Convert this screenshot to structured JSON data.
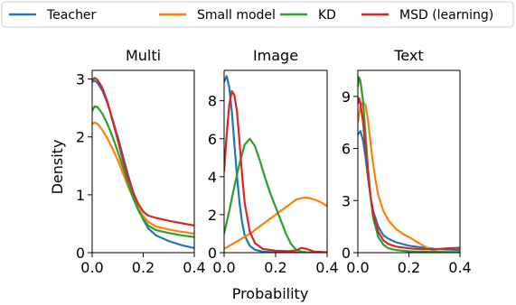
{
  "chart_data": {
    "type": "line",
    "xlabel": "Probability",
    "ylabel": "Density",
    "legend": {
      "placement": "top",
      "entries": [
        {
          "name": "Teacher",
          "color": "#1f77b4"
        },
        {
          "name": "Small model",
          "color": "#ff7f0e"
        },
        {
          "name": "KD",
          "color": "#2ca02c"
        },
        {
          "name": "MSD (learning)",
          "color": "#d62728"
        }
      ]
    },
    "panels": [
      {
        "title": "Multi",
        "xlim": [
          0,
          0.4
        ],
        "ylim": [
          0,
          3.15
        ],
        "xticks": [
          0.0,
          0.2,
          0.4
        ],
        "xtick_labels": [
          "0.0",
          "0.2",
          "0.4"
        ],
        "yticks": [
          0,
          1,
          2,
          3
        ],
        "ytick_labels": [
          "0",
          "1",
          "2",
          "3"
        ],
        "series": [
          {
            "name": "Teacher",
            "color": "#1f77b4",
            "x": [
              0,
              0.01,
              0.02,
              0.04,
              0.06,
              0.08,
              0.1,
              0.12,
              0.14,
              0.16,
              0.18,
              0.2,
              0.22,
              0.25,
              0.3,
              0.35,
              0.4
            ],
            "y": [
              2.95,
              2.97,
              2.94,
              2.8,
              2.58,
              2.3,
              2.0,
              1.68,
              1.35,
              1.05,
              0.78,
              0.57,
              0.42,
              0.3,
              0.2,
              0.13,
              0.08
            ]
          },
          {
            "name": "Small model",
            "color": "#ff7f0e",
            "x": [
              0,
              0.01,
              0.02,
              0.04,
              0.06,
              0.08,
              0.1,
              0.12,
              0.14,
              0.16,
              0.18,
              0.2,
              0.22,
              0.25,
              0.3,
              0.35,
              0.4
            ],
            "y": [
              2.22,
              2.25,
              2.23,
              2.12,
              1.97,
              1.8,
              1.6,
              1.38,
              1.15,
              0.95,
              0.78,
              0.63,
              0.53,
              0.45,
              0.4,
              0.36,
              0.33
            ]
          },
          {
            "name": "KD",
            "color": "#2ca02c",
            "x": [
              0,
              0.01,
              0.02,
              0.04,
              0.06,
              0.08,
              0.1,
              0.12,
              0.14,
              0.16,
              0.18,
              0.2,
              0.22,
              0.25,
              0.3,
              0.35,
              0.4
            ],
            "y": [
              2.45,
              2.53,
              2.52,
              2.4,
              2.22,
              2.0,
              1.75,
              1.48,
              1.2,
              0.95,
              0.74,
              0.58,
              0.47,
              0.39,
              0.34,
              0.3,
              0.27
            ]
          },
          {
            "name": "MSD (learning)",
            "color": "#d62728",
            "x": [
              0,
              0.01,
              0.02,
              0.04,
              0.06,
              0.08,
              0.1,
              0.12,
              0.14,
              0.16,
              0.18,
              0.2,
              0.22,
              0.25,
              0.3,
              0.35,
              0.4
            ],
            "y": [
              2.98,
              3.02,
              2.99,
              2.85,
              2.6,
              2.28,
              1.95,
              1.6,
              1.3,
              1.05,
              0.85,
              0.71,
              0.64,
              0.6,
              0.55,
              0.51,
              0.47
            ]
          }
        ]
      },
      {
        "title": "Image",
        "xlim": [
          0,
          0.4
        ],
        "ylim": [
          0,
          9.6
        ],
        "xticks": [
          0.0,
          0.2,
          0.4
        ],
        "xtick_labels": [
          "0.0",
          "0.2",
          "0.4"
        ],
        "yticks": [
          0,
          2,
          4,
          6,
          8
        ],
        "ytick_labels": [
          "0",
          "2",
          "4",
          "6",
          "8"
        ],
        "series": [
          {
            "name": "Teacher",
            "color": "#1f77b4",
            "x": [
              0,
              0.01,
              0.02,
              0.03,
              0.04,
              0.05,
              0.06,
              0.07,
              0.08,
              0.1,
              0.12,
              0.15,
              0.2,
              0.3,
              0.4
            ],
            "y": [
              9.0,
              9.3,
              8.7,
              7.4,
              5.7,
              4.0,
              2.6,
              1.6,
              0.9,
              0.35,
              0.15,
              0.05,
              0.02,
              0.0,
              0.0
            ]
          },
          {
            "name": "Small model",
            "color": "#ff7f0e",
            "x": [
              0,
              0.05,
              0.1,
              0.15,
              0.2,
              0.25,
              0.28,
              0.31,
              0.33,
              0.36,
              0.38,
              0.4
            ],
            "y": [
              0.2,
              0.6,
              1.0,
              1.5,
              2.0,
              2.5,
              2.8,
              2.9,
              2.88,
              2.75,
              2.62,
              2.45
            ]
          },
          {
            "name": "KD",
            "color": "#2ca02c",
            "x": [
              0,
              0.02,
              0.04,
              0.06,
              0.08,
              0.1,
              0.12,
              0.14,
              0.16,
              0.18,
              0.2,
              0.22,
              0.24,
              0.26,
              0.28,
              0.3,
              0.32,
              0.35,
              0.4
            ],
            "y": [
              1.0,
              2.2,
              3.5,
              4.7,
              5.7,
              6.0,
              5.6,
              4.8,
              3.9,
              3.1,
              2.4,
              1.7,
              1.0,
              0.45,
              0.15,
              0.05,
              0.02,
              0.0,
              0.0
            ]
          },
          {
            "name": "MSD (learning)",
            "color": "#d62728",
            "x": [
              0,
              0.01,
              0.02,
              0.03,
              0.04,
              0.05,
              0.06,
              0.07,
              0.08,
              0.1,
              0.12,
              0.15,
              0.2,
              0.25,
              0.28,
              0.3,
              0.32,
              0.35,
              0.4
            ],
            "y": [
              4.3,
              6.2,
              7.8,
              8.5,
              8.3,
              7.4,
              5.8,
              4.1,
              2.6,
              1.1,
              0.5,
              0.2,
              0.1,
              0.08,
              0.12,
              0.25,
              0.2,
              0.05,
              0.02
            ]
          }
        ]
      },
      {
        "title": "Text",
        "xlim": [
          0,
          0.4
        ],
        "ylim": [
          0,
          10.5
        ],
        "xticks": [
          0.0,
          0.2,
          0.4
        ],
        "xtick_labels": [
          "0.0",
          "0.2",
          "0.4"
        ],
        "yticks": [
          0,
          3,
          6,
          9
        ],
        "ytick_labels": [
          "0",
          "3",
          "6",
          "9"
        ],
        "series": [
          {
            "name": "Teacher",
            "color": "#1f77b4",
            "x": [
              0,
              0.01,
              0.02,
              0.03,
              0.04,
              0.05,
              0.06,
              0.08,
              0.1,
              0.12,
              0.15,
              0.2,
              0.25,
              0.3,
              0.35,
              0.4
            ],
            "y": [
              6.8,
              7.0,
              6.5,
              5.5,
              4.3,
              3.2,
              2.4,
              1.5,
              1.0,
              0.8,
              0.6,
              0.4,
              0.3,
              0.22,
              0.18,
              0.15
            ]
          },
          {
            "name": "Small model",
            "color": "#ff7f0e",
            "x": [
              0,
              0.01,
              0.02,
              0.03,
              0.04,
              0.05,
              0.06,
              0.07,
              0.08,
              0.1,
              0.12,
              0.15,
              0.18,
              0.2,
              0.22,
              0.25,
              0.28,
              0.3,
              0.32,
              0.35,
              0.4
            ],
            "y": [
              7.5,
              8.4,
              8.7,
              8.5,
              7.6,
              6.3,
              5.1,
              4.1,
              3.3,
              2.4,
              1.85,
              1.35,
              1.05,
              0.9,
              0.72,
              0.45,
              0.22,
              0.1,
              0.05,
              0.02,
              0.0
            ]
          },
          {
            "name": "KD",
            "color": "#2ca02c",
            "x": [
              0,
              0.005,
              0.01,
              0.02,
              0.03,
              0.04,
              0.05,
              0.06,
              0.08,
              0.1,
              0.12,
              0.15,
              0.2,
              0.25,
              0.3,
              0.4
            ],
            "y": [
              9.6,
              10.1,
              9.9,
              8.8,
              6.8,
              4.8,
              3.2,
              2.0,
              0.9,
              0.45,
              0.25,
              0.15,
              0.08,
              0.05,
              0.04,
              0.03
            ]
          },
          {
            "name": "MSD (learning)",
            "color": "#d62728",
            "x": [
              0,
              0.005,
              0.01,
              0.02,
              0.03,
              0.04,
              0.05,
              0.06,
              0.08,
              0.1,
              0.12,
              0.15,
              0.2,
              0.25,
              0.3,
              0.35,
              0.4
            ],
            "y": [
              8.6,
              8.9,
              8.6,
              7.6,
              6.0,
              4.5,
              3.2,
              2.3,
              1.2,
              0.7,
              0.5,
              0.35,
              0.25,
              0.2,
              0.2,
              0.25,
              0.28
            ]
          }
        ]
      }
    ]
  }
}
